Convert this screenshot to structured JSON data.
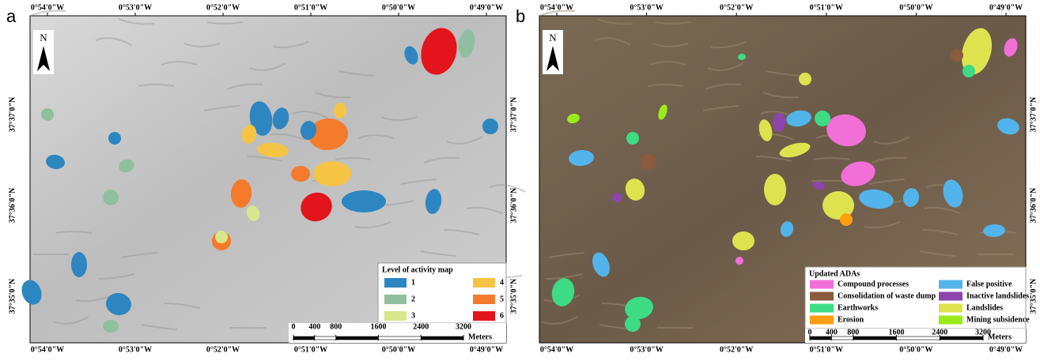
{
  "panels": [
    {
      "letter": "a",
      "north": "N",
      "lon_labels": [
        "0°54'0\"W",
        "0°53'0\"W",
        "0°52'0\"W",
        "0°51'0\"W",
        "0°50'0\"W",
        "0°49'0\"W"
      ],
      "lat_labels": [
        "37°37'0\"N",
        "37°36'0\"N",
        "37°35'0\"N"
      ],
      "legend": {
        "title": "Level of activity map",
        "items": [
          {
            "label": "1",
            "color": "#2e86c1"
          },
          {
            "label": "2",
            "color": "#8fbf9f"
          },
          {
            "label": "3",
            "color": "#d8e68c"
          },
          {
            "label": "4",
            "color": "#f6c445"
          },
          {
            "label": "5",
            "color": "#f47a2c"
          },
          {
            "label": "6",
            "color": "#e3141c"
          }
        ]
      },
      "scale": {
        "ticks": [
          0,
          400,
          800,
          1600,
          2400,
          3200
        ],
        "unit": "Meters"
      }
    },
    {
      "letter": "b",
      "north": "N",
      "lon_labels": [
        "0°54'0\"W",
        "0°53'0\"W",
        "0°52'0\"W",
        "0°51'0\"W",
        "0°50'0\"W",
        "0°49'0\"W"
      ],
      "lat_labels": [
        "37°37'0\"N",
        "37°36'0\"N",
        "37°35'0\"N"
      ],
      "legend": {
        "title": "Updated ADAs",
        "items": [
          {
            "label": "Compound processes",
            "color": "#f26fd8"
          },
          {
            "label": "False positive",
            "color": "#52b4ea"
          },
          {
            "label": "Consolidation of waste dump",
            "color": "#8c5a3c"
          },
          {
            "label": "Inactive landslides",
            "color": "#8e44ad"
          },
          {
            "label": "Earthworks",
            "color": "#3ddc84"
          },
          {
            "label": "Landslides",
            "color": "#dfe24f"
          },
          {
            "label": "Erosion",
            "color": "#ff9f10"
          },
          {
            "label": "Mining subsidence",
            "color": "#9bea1a"
          }
        ]
      },
      "scale": {
        "ticks": [
          0,
          400,
          800,
          1600,
          2400,
          3200
        ],
        "unit": "Meters"
      }
    }
  ]
}
